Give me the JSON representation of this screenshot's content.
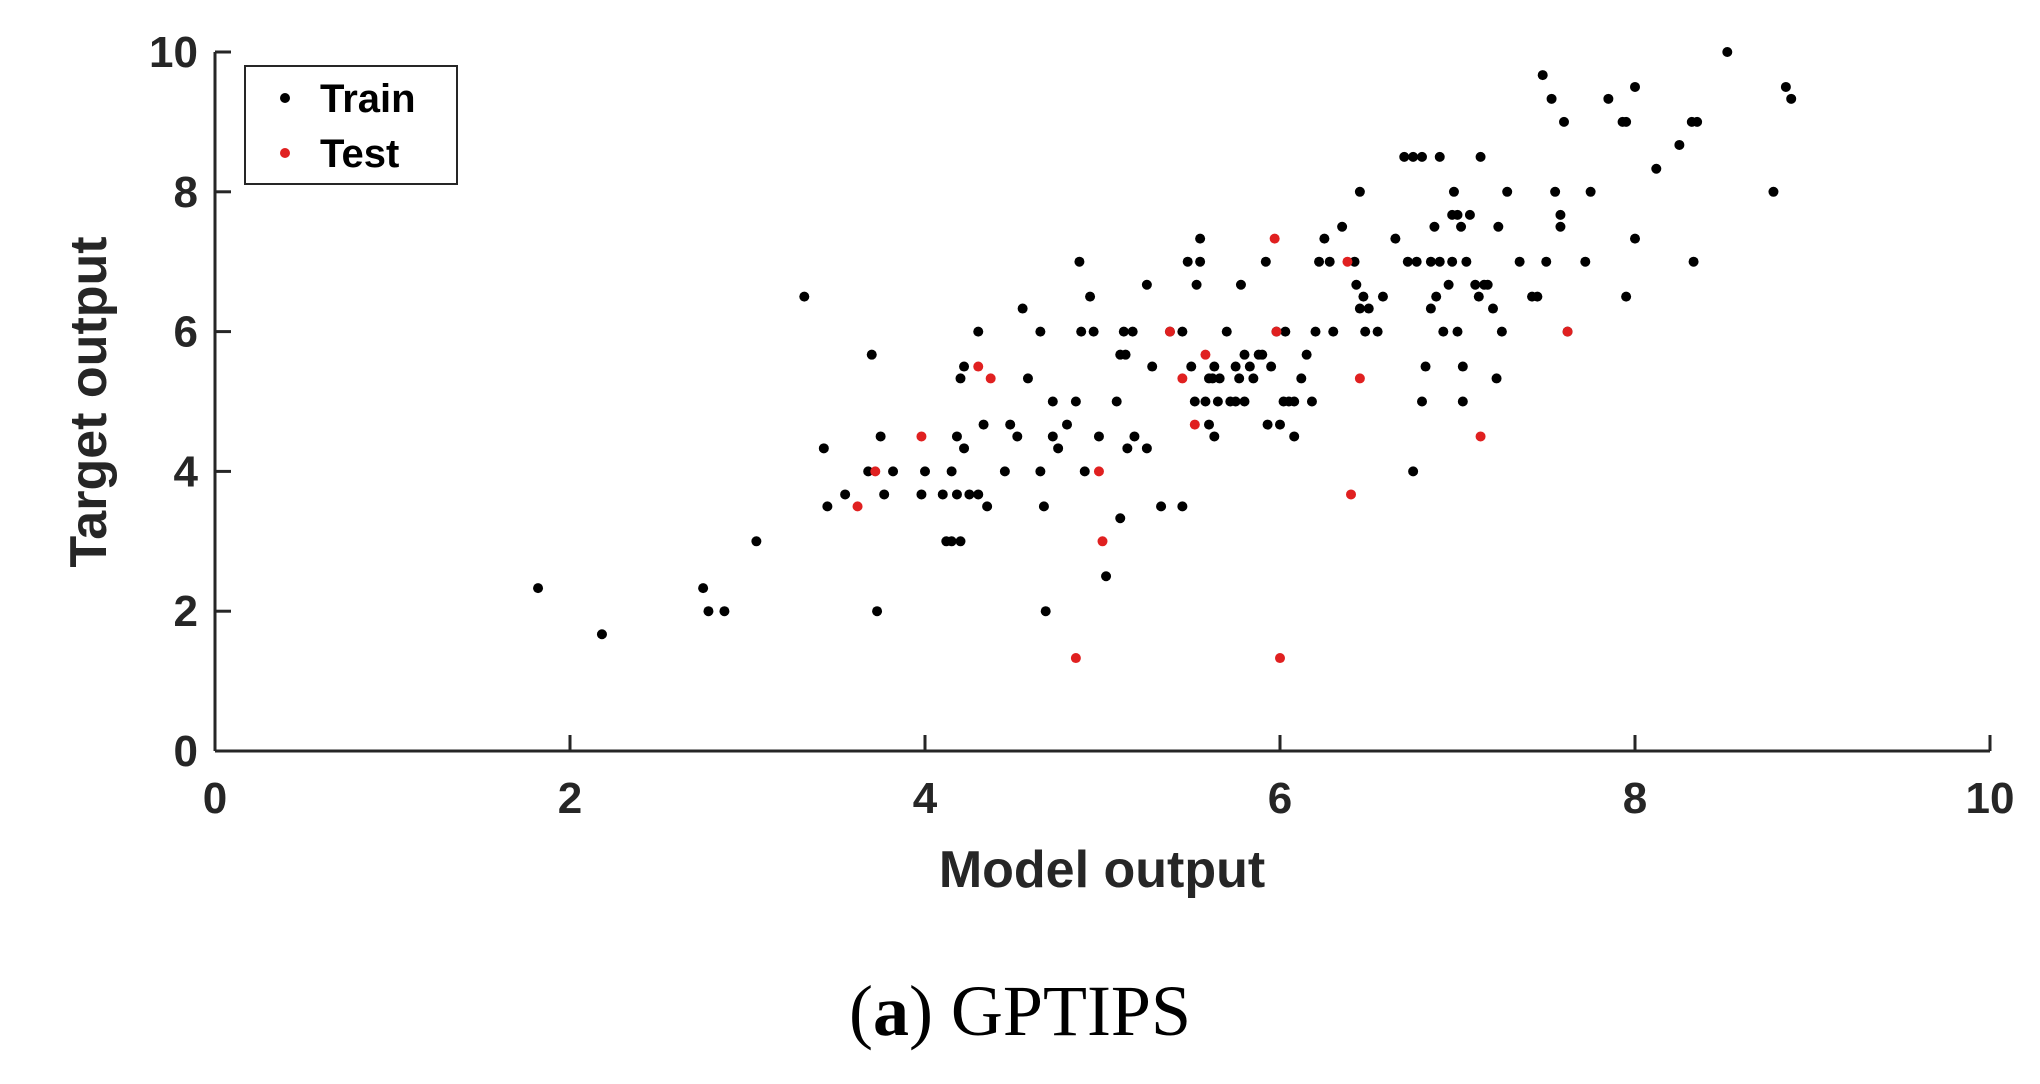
{
  "chart_data": {
    "type": "scatter",
    "title": "",
    "xlabel": "Model output",
    "ylabel": "Target output",
    "xlim": [
      0,
      10
    ],
    "ylim": [
      0,
      10
    ],
    "xticks": [
      "0",
      "2",
      "4",
      "6",
      "8",
      "10"
    ],
    "yticks": [
      "0",
      "2",
      "4",
      "6",
      "8",
      "10"
    ],
    "grid": false,
    "legend_position": "top-left",
    "series": [
      {
        "name": "Train",
        "color": "#000000",
        "points": [
          [
            1.82,
            2.33
          ],
          [
            2.18,
            1.67
          ],
          [
            2.75,
            2.33
          ],
          [
            2.78,
            2.0
          ],
          [
            2.87,
            2.0
          ],
          [
            3.05,
            3.0
          ],
          [
            3.32,
            6.5
          ],
          [
            3.43,
            4.33
          ],
          [
            3.45,
            3.5
          ],
          [
            3.55,
            3.67
          ],
          [
            3.68,
            4.0
          ],
          [
            3.7,
            5.67
          ],
          [
            3.73,
            2.0
          ],
          [
            3.75,
            4.5
          ],
          [
            3.77,
            3.67
          ],
          [
            3.82,
            4.0
          ],
          [
            3.98,
            3.67
          ],
          [
            4.0,
            4.0
          ],
          [
            4.1,
            3.67
          ],
          [
            4.12,
            3.0
          ],
          [
            4.15,
            4.0
          ],
          [
            4.15,
            3.0
          ],
          [
            4.18,
            3.67
          ],
          [
            4.18,
            4.5
          ],
          [
            4.2,
            5.33
          ],
          [
            4.2,
            3.0
          ],
          [
            4.22,
            4.33
          ],
          [
            4.22,
            5.5
          ],
          [
            4.25,
            3.67
          ],
          [
            4.3,
            6.0
          ],
          [
            4.3,
            3.67
          ],
          [
            4.33,
            4.67
          ],
          [
            4.35,
            3.5
          ],
          [
            4.45,
            4.0
          ],
          [
            4.48,
            4.67
          ],
          [
            4.52,
            4.5
          ],
          [
            4.55,
            6.33
          ],
          [
            4.58,
            5.33
          ],
          [
            4.65,
            4.0
          ],
          [
            4.65,
            6.0
          ],
          [
            4.67,
            3.5
          ],
          [
            4.68,
            2.0
          ],
          [
            4.72,
            5.0
          ],
          [
            4.72,
            4.5
          ],
          [
            4.75,
            4.33
          ],
          [
            4.8,
            4.67
          ],
          [
            4.85,
            5.0
          ],
          [
            4.87,
            7.0
          ],
          [
            4.88,
            6.0
          ],
          [
            4.9,
            4.0
          ],
          [
            4.93,
            6.5
          ],
          [
            4.95,
            6.0
          ],
          [
            4.98,
            4.5
          ],
          [
            5.02,
            2.5
          ],
          [
            5.08,
            5.0
          ],
          [
            5.1,
            3.33
          ],
          [
            5.1,
            5.67
          ],
          [
            5.12,
            6.0
          ],
          [
            5.13,
            5.67
          ],
          [
            5.14,
            4.33
          ],
          [
            5.17,
            6.0
          ],
          [
            5.18,
            4.5
          ],
          [
            5.25,
            6.67
          ],
          [
            5.25,
            4.33
          ],
          [
            5.28,
            5.5
          ],
          [
            5.33,
            3.5
          ],
          [
            5.38,
            6.0
          ],
          [
            5.45,
            6.0
          ],
          [
            5.45,
            3.5
          ],
          [
            5.48,
            7.0
          ],
          [
            5.5,
            5.5
          ],
          [
            5.52,
            5.0
          ],
          [
            5.53,
            6.67
          ],
          [
            5.55,
            7.0
          ],
          [
            5.55,
            7.33
          ],
          [
            5.58,
            5.0
          ],
          [
            5.6,
            4.67
          ],
          [
            5.6,
            5.33
          ],
          [
            5.62,
            5.33
          ],
          [
            5.63,
            5.5
          ],
          [
            5.63,
            4.5
          ],
          [
            5.65,
            5.0
          ],
          [
            5.66,
            5.33
          ],
          [
            5.7,
            6.0
          ],
          [
            5.72,
            5.0
          ],
          [
            5.75,
            5.0
          ],
          [
            5.75,
            5.5
          ],
          [
            5.77,
            5.33
          ],
          [
            5.78,
            6.67
          ],
          [
            5.8,
            5.0
          ],
          [
            5.8,
            5.67
          ],
          [
            5.83,
            5.5
          ],
          [
            5.85,
            5.33
          ],
          [
            5.88,
            5.67
          ],
          [
            5.9,
            5.67
          ],
          [
            5.92,
            7.0
          ],
          [
            5.93,
            4.67
          ],
          [
            5.95,
            5.5
          ],
          [
            5.98,
            6.0
          ],
          [
            6.0,
            4.67
          ],
          [
            6.02,
            5.0
          ],
          [
            6.03,
            6.0
          ],
          [
            6.05,
            5.0
          ],
          [
            6.08,
            5.0
          ],
          [
            6.08,
            4.5
          ],
          [
            6.12,
            5.33
          ],
          [
            6.15,
            5.67
          ],
          [
            6.18,
            5.0
          ],
          [
            6.2,
            6.0
          ],
          [
            6.22,
            7.0
          ],
          [
            6.25,
            7.33
          ],
          [
            6.28,
            7.0
          ],
          [
            6.3,
            6.0
          ],
          [
            6.35,
            7.5
          ],
          [
            6.42,
            7.0
          ],
          [
            6.43,
            6.67
          ],
          [
            6.45,
            6.33
          ],
          [
            6.45,
            8.0
          ],
          [
            6.47,
            6.5
          ],
          [
            6.48,
            6.0
          ],
          [
            6.5,
            6.33
          ],
          [
            6.55,
            6.0
          ],
          [
            6.58,
            6.5
          ],
          [
            6.65,
            7.33
          ],
          [
            6.7,
            8.5
          ],
          [
            6.72,
            7.0
          ],
          [
            6.75,
            8.5
          ],
          [
            6.75,
            4.0
          ],
          [
            6.77,
            7.0
          ],
          [
            6.8,
            8.5
          ],
          [
            6.8,
            5.0
          ],
          [
            6.82,
            5.5
          ],
          [
            6.85,
            7.0
          ],
          [
            6.85,
            6.33
          ],
          [
            6.87,
            7.5
          ],
          [
            6.88,
            6.5
          ],
          [
            6.9,
            8.5
          ],
          [
            6.9,
            7.0
          ],
          [
            6.92,
            6.0
          ],
          [
            6.95,
            6.67
          ],
          [
            6.97,
            7.67
          ],
          [
            6.97,
            7.0
          ],
          [
            6.98,
            8.0
          ],
          [
            7.0,
            6.0
          ],
          [
            7.0,
            7.67
          ],
          [
            7.02,
            7.5
          ],
          [
            7.03,
            5.5
          ],
          [
            7.03,
            5.0
          ],
          [
            7.05,
            7.0
          ],
          [
            7.07,
            7.67
          ],
          [
            7.1,
            6.67
          ],
          [
            7.12,
            6.5
          ],
          [
            7.13,
            8.5
          ],
          [
            7.15,
            6.67
          ],
          [
            7.17,
            6.67
          ],
          [
            7.2,
            6.33
          ],
          [
            7.22,
            5.33
          ],
          [
            7.23,
            7.5
          ],
          [
            7.25,
            6.0
          ],
          [
            7.28,
            8.0
          ],
          [
            7.35,
            7.0
          ],
          [
            7.42,
            6.5
          ],
          [
            7.45,
            6.5
          ],
          [
            7.48,
            9.67
          ],
          [
            7.5,
            7.0
          ],
          [
            7.53,
            9.33
          ],
          [
            7.55,
            8.0
          ],
          [
            7.58,
            7.67
          ],
          [
            7.58,
            7.5
          ],
          [
            7.6,
            9.0
          ],
          [
            7.62,
            6.0
          ],
          [
            7.72,
            7.0
          ],
          [
            7.75,
            8.0
          ],
          [
            7.85,
            9.33
          ],
          [
            7.93,
            9.0
          ],
          [
            7.95,
            9.0
          ],
          [
            7.95,
            6.5
          ],
          [
            8.0,
            9.5
          ],
          [
            8.0,
            7.33
          ],
          [
            8.12,
            8.33
          ],
          [
            8.25,
            8.67
          ],
          [
            8.32,
            9.0
          ],
          [
            8.33,
            7.0
          ],
          [
            8.35,
            9.0
          ],
          [
            8.52,
            10.0
          ],
          [
            8.78,
            8.0
          ],
          [
            8.85,
            9.5
          ],
          [
            8.88,
            9.33
          ]
        ]
      },
      {
        "name": "Test",
        "color": "#e02020",
        "points": [
          [
            3.62,
            3.5
          ],
          [
            3.72,
            4.0
          ],
          [
            3.98,
            4.5
          ],
          [
            4.3,
            5.5
          ],
          [
            4.37,
            5.33
          ],
          [
            4.85,
            1.33
          ],
          [
            4.98,
            4.0
          ],
          [
            5.0,
            3.0
          ],
          [
            5.38,
            6.0
          ],
          [
            5.45,
            5.33
          ],
          [
            5.52,
            4.67
          ],
          [
            5.58,
            5.67
          ],
          [
            5.97,
            7.33
          ],
          [
            5.98,
            6.0
          ],
          [
            6.0,
            1.33
          ],
          [
            6.38,
            7.0
          ],
          [
            6.4,
            3.67
          ],
          [
            6.45,
            5.33
          ],
          [
            7.13,
            4.5
          ],
          [
            7.62,
            6.0
          ]
        ]
      }
    ]
  },
  "caption": {
    "open_paren": "(",
    "letter": "a",
    "rest": ") GPTIPS"
  }
}
